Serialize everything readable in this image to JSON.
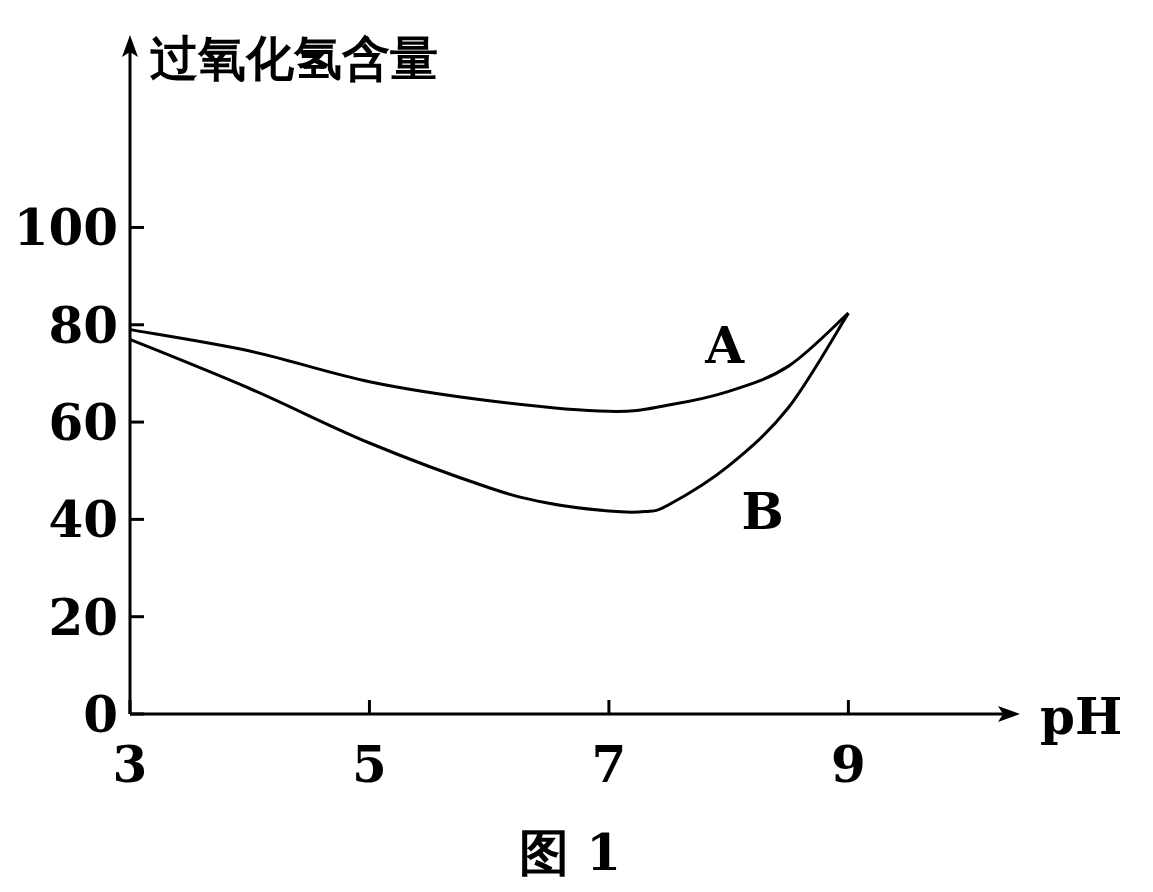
{
  "chart_data": {
    "type": "line",
    "xlabel": "pH",
    "ylabel": "过氧化氢含量",
    "annotations": [
      "图 1"
    ],
    "xlim": [
      3,
      10.35
    ],
    "ylim": [
      0,
      137.5
    ],
    "xticks": [
      3,
      5,
      7,
      9
    ],
    "yticks": [
      0,
      20,
      40,
      60,
      80,
      100
    ],
    "grid": false,
    "legend": false,
    "marker": "none",
    "line_style": "solid",
    "series": [
      {
        "name": "A",
        "color": "#000000",
        "x": [
          3,
          4,
          5,
          6,
          7,
          7.5,
          8,
          8.5,
          9
        ],
        "values": [
          79,
          74.6,
          68.3,
          64.4,
          62.2,
          63.5,
          66.3,
          71.5,
          82.4
        ]
      },
      {
        "name": "B",
        "color": "#000000",
        "x": [
          3,
          4,
          5,
          6,
          6.5,
          7,
          7.3,
          7.5,
          8,
          8.5,
          9
        ],
        "values": [
          77,
          66.9,
          55.7,
          46.5,
          43.3,
          41.7,
          41.6,
          43,
          51,
          63,
          82.4
        ]
      }
    ]
  }
}
